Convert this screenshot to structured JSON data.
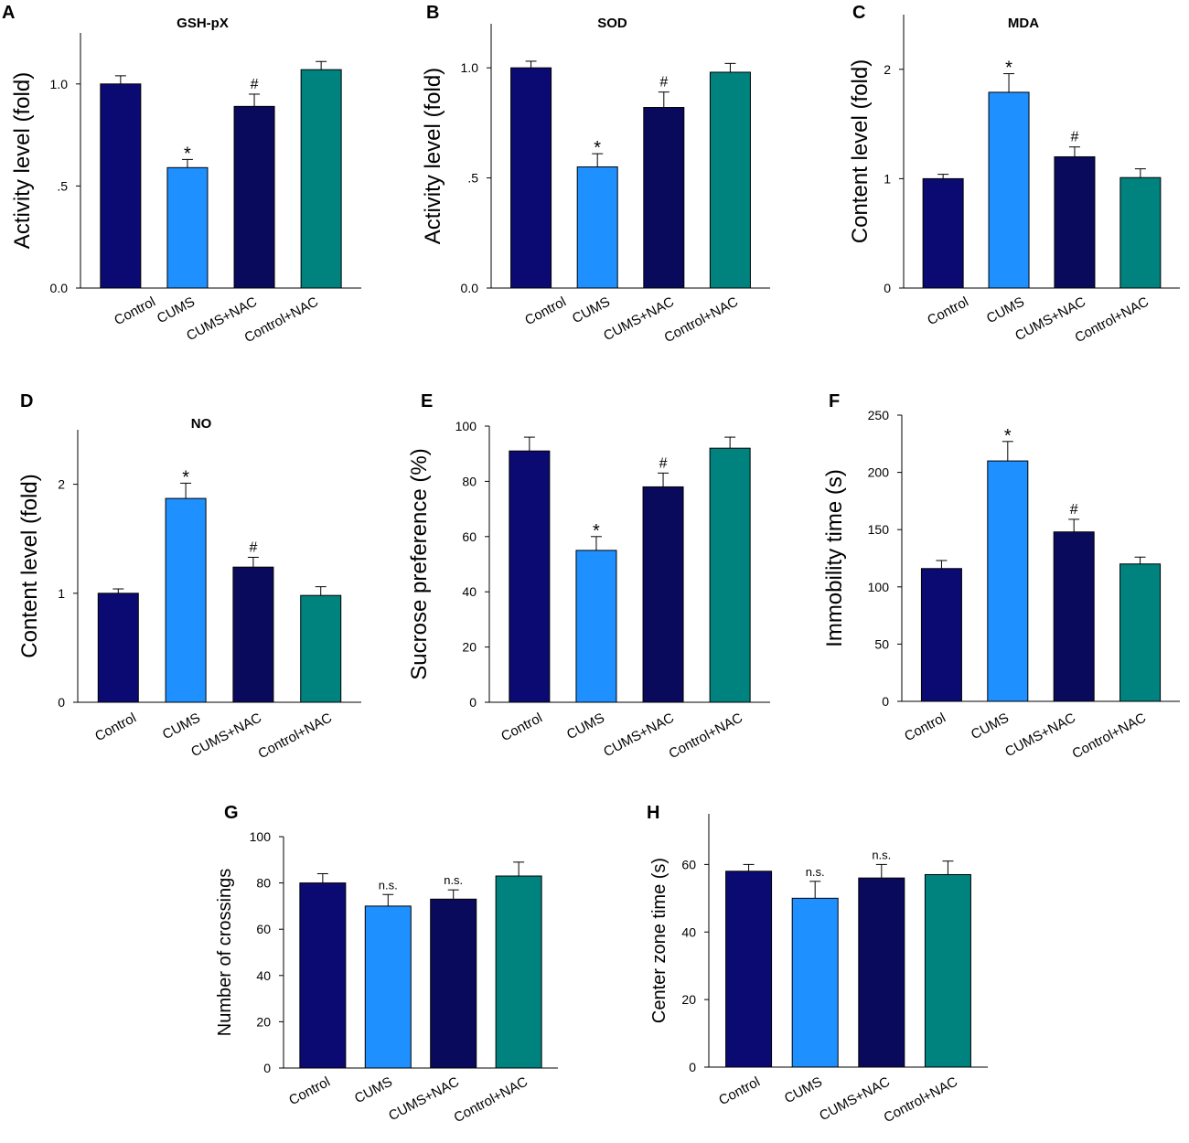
{
  "figure": {
    "bar_colors": [
      "#0a0a72",
      "#1e90ff",
      "#0a0a5c",
      "#00827f"
    ],
    "outline_color": "#000000"
  },
  "chart_data": [
    {
      "panel": "A",
      "type": "bar",
      "title": "GSH-pX",
      "ylabel": "Activity level (fold)",
      "ylim": [
        0,
        1.25
      ],
      "yticks": [
        0,
        0.5,
        1.0
      ],
      "ytick_labels": [
        "0.0",
        ".5",
        "1.0"
      ],
      "categories": [
        "Control",
        "CUMS",
        "CUMS+NAC",
        "Control+NAC"
      ],
      "values": [
        1.0,
        0.59,
        0.89,
        1.07
      ],
      "errors": [
        0.04,
        0.04,
        0.06,
        0.04
      ],
      "annotations": [
        "",
        "*",
        "#",
        ""
      ]
    },
    {
      "panel": "B",
      "type": "bar",
      "title": "SOD",
      "ylabel": "Activity level (fold)",
      "ylim": [
        0,
        1.2
      ],
      "yticks": [
        0,
        0.5,
        1.0
      ],
      "ytick_labels": [
        "0.0",
        ".5",
        "1.0"
      ],
      "categories": [
        "Control",
        "CUMS",
        "CUMS+NAC",
        "Control+NAC"
      ],
      "values": [
        1.0,
        0.55,
        0.82,
        0.98
      ],
      "errors": [
        0.03,
        0.06,
        0.07,
        0.04
      ],
      "annotations": [
        "",
        "*",
        "#",
        ""
      ]
    },
    {
      "panel": "C",
      "type": "bar",
      "title": "MDA",
      "ylabel": "Content level (fold)",
      "ylim": [
        0,
        2.5
      ],
      "yticks": [
        0,
        1,
        2
      ],
      "ytick_labels": [
        "0",
        "1",
        "2"
      ],
      "categories": [
        "Control",
        "CUMS",
        "CUMS+NAC",
        "Control+NAC"
      ],
      "values": [
        1.0,
        1.79,
        1.2,
        1.01
      ],
      "errors": [
        0.04,
        0.17,
        0.09,
        0.08
      ],
      "annotations": [
        "",
        "*",
        "#",
        ""
      ]
    },
    {
      "panel": "D",
      "type": "bar",
      "title": "NO",
      "ylabel": "Content level (fold)",
      "ylim": [
        0,
        2.5
      ],
      "yticks": [
        0,
        1,
        2
      ],
      "ytick_labels": [
        "0",
        "1",
        "2"
      ],
      "categories": [
        "Control",
        "CUMS",
        "CUMS+NAC",
        "Control+NAC"
      ],
      "values": [
        1.0,
        1.87,
        1.24,
        0.98
      ],
      "errors": [
        0.04,
        0.14,
        0.09,
        0.08
      ],
      "annotations": [
        "",
        "*",
        "#",
        ""
      ]
    },
    {
      "panel": "E",
      "type": "bar",
      "title": "",
      "ylabel": "Sucrose preference (%)",
      "ylim": [
        0,
        100
      ],
      "yticks": [
        0,
        20,
        40,
        60,
        80,
        100
      ],
      "ytick_labels": [
        "0",
        "20",
        "40",
        "60",
        "80",
        "100"
      ],
      "categories": [
        "Control",
        "CUMS",
        "CUMS+NAC",
        "Control+NAC"
      ],
      "values": [
        91,
        55,
        78,
        92
      ],
      "errors": [
        5,
        5,
        5,
        4
      ],
      "annotations": [
        "",
        "*",
        "#",
        ""
      ]
    },
    {
      "panel": "F",
      "type": "bar",
      "title": "",
      "ylabel": "Immobility time (s)",
      "ylim": [
        0,
        250
      ],
      "yticks": [
        0,
        50,
        100,
        150,
        200,
        250
      ],
      "ytick_labels": [
        "0",
        "50",
        "100",
        "150",
        "200",
        "250"
      ],
      "categories": [
        "Control",
        "CUMS",
        "CUMS+NAC",
        "Control+NAC"
      ],
      "values": [
        116,
        210,
        148,
        120
      ],
      "errors": [
        7,
        17,
        11,
        6
      ],
      "annotations": [
        "",
        "*",
        "#",
        ""
      ]
    },
    {
      "panel": "G",
      "type": "bar",
      "title": "",
      "ylabel": "Number of crossings",
      "ylim": [
        0,
        100
      ],
      "yticks": [
        0,
        20,
        40,
        60,
        80,
        100
      ],
      "ytick_labels": [
        "0",
        "20",
        "40",
        "60",
        "80",
        "100"
      ],
      "categories": [
        "Control",
        "CUMS",
        "CUMS+NAC",
        "Control+NAC"
      ],
      "values": [
        80,
        70,
        73,
        83
      ],
      "errors": [
        4,
        5,
        4,
        6
      ],
      "annotations": [
        "",
        "n.s.",
        "n.s.",
        ""
      ]
    },
    {
      "panel": "H",
      "type": "bar",
      "title": "",
      "ylabel": "Center zone time (s)",
      "ylim": [
        0,
        75
      ],
      "yticks": [
        0,
        20,
        40,
        60
      ],
      "ytick_labels": [
        "0",
        "20",
        "40",
        "60"
      ],
      "categories": [
        "Control",
        "CUMS",
        "CUMS+NAC",
        "Control+NAC"
      ],
      "values": [
        58,
        50,
        56,
        57
      ],
      "errors": [
        2,
        5,
        4,
        4
      ],
      "annotations": [
        "",
        "n.s.",
        "n.s.",
        ""
      ]
    }
  ]
}
